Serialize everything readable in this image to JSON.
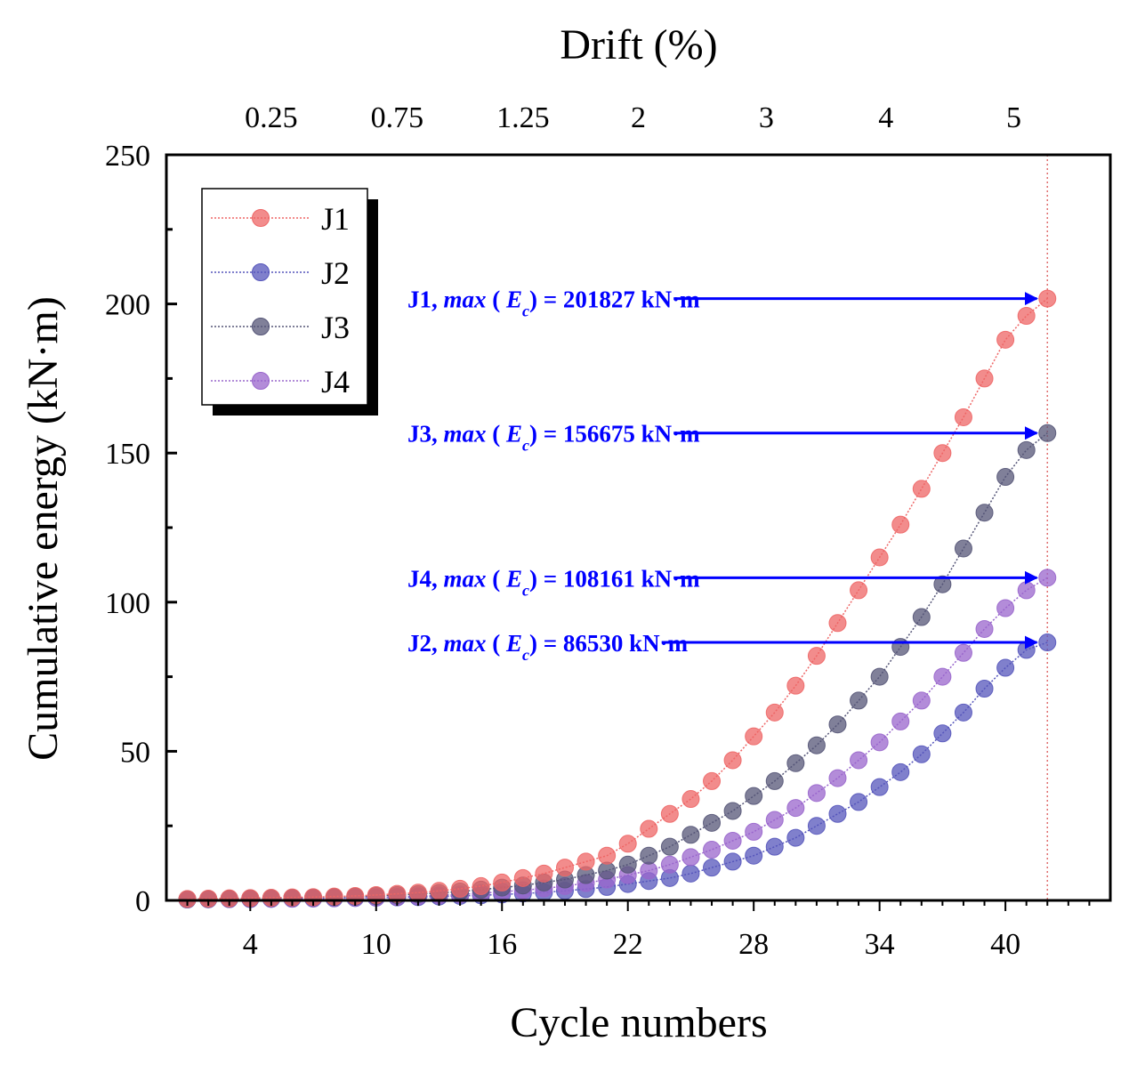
{
  "chart_data": {
    "type": "scatter",
    "xlabel": "Cycle numbers",
    "ylabel": "Cumulative energy (kN·m)",
    "top_xlabel": "Drift (%)",
    "xlim": [
      0,
      45
    ],
    "ylim": [
      0,
      250
    ],
    "x_ticks": [
      4,
      10,
      16,
      22,
      28,
      34,
      40
    ],
    "y_ticks": [
      0,
      50,
      100,
      150,
      200,
      250
    ],
    "top_ticks": [
      {
        "label": "0.25",
        "at_cycle": 5
      },
      {
        "label": "0.75",
        "at_cycle": 11
      },
      {
        "label": "1.25",
        "at_cycle": 17
      },
      {
        "label": "2",
        "at_cycle": 22.5
      },
      {
        "label": "3",
        "at_cycle": 28.6
      },
      {
        "label": "4",
        "at_cycle": 34.3
      },
      {
        "label": "5",
        "at_cycle": 40.4
      }
    ],
    "reference_line_x": 42,
    "legend_position": "top-left",
    "series": [
      {
        "name": "J1",
        "color": "#ee6666",
        "x": [
          1,
          2,
          3,
          4,
          5,
          6,
          7,
          8,
          9,
          10,
          11,
          12,
          13,
          14,
          15,
          16,
          17,
          18,
          19,
          20,
          21,
          22,
          23,
          24,
          25,
          26,
          27,
          28,
          29,
          30,
          31,
          32,
          33,
          34,
          35,
          36,
          37,
          38,
          39,
          40,
          41,
          42
        ],
        "values": [
          0.5,
          0.6,
          0.7,
          0.8,
          0.9,
          1.0,
          1.1,
          1.3,
          1.5,
          1.8,
          2.2,
          2.6,
          3.2,
          3.9,
          4.8,
          6,
          7.5,
          9,
          11,
          13,
          15,
          19,
          24,
          29,
          34,
          40,
          47,
          55,
          63,
          72,
          82,
          93,
          104,
          115,
          126,
          138,
          150,
          162,
          175,
          188,
          196,
          201.8
        ]
      },
      {
        "name": "J2",
        "color": "#5555bb",
        "x": [
          1,
          2,
          3,
          4,
          5,
          6,
          7,
          8,
          9,
          10,
          11,
          12,
          13,
          14,
          15,
          16,
          17,
          18,
          19,
          20,
          21,
          22,
          23,
          24,
          25,
          26,
          27,
          28,
          29,
          30,
          31,
          32,
          33,
          34,
          35,
          36,
          37,
          38,
          39,
          40,
          41,
          42
        ],
        "values": [
          0.3,
          0.35,
          0.4,
          0.45,
          0.5,
          0.55,
          0.6,
          0.7,
          0.8,
          0.9,
          1.0,
          1.1,
          1.3,
          1.5,
          1.7,
          2.0,
          2.3,
          2.7,
          3.2,
          3.8,
          4.5,
          5.5,
          6.5,
          7.5,
          9,
          11,
          13,
          15,
          18,
          21,
          25,
          29,
          33,
          38,
          43,
          49,
          56,
          63,
          71,
          78,
          84,
          86.5
        ]
      },
      {
        "name": "J3",
        "color": "#555577",
        "x": [
          1,
          2,
          3,
          4,
          5,
          6,
          7,
          8,
          9,
          10,
          11,
          12,
          13,
          14,
          15,
          16,
          17,
          18,
          19,
          20,
          21,
          22,
          23,
          24,
          25,
          26,
          27,
          28,
          29,
          30,
          31,
          32,
          33,
          34,
          35,
          36,
          37,
          38,
          39,
          40,
          41,
          42
        ],
        "values": [
          0.4,
          0.5,
          0.6,
          0.7,
          0.8,
          0.9,
          1.0,
          1.1,
          1.3,
          1.5,
          1.8,
          2.1,
          2.5,
          3,
          3.6,
          4.3,
          5,
          6,
          7,
          8.5,
          10,
          12,
          15,
          18,
          22,
          26,
          30,
          35,
          40,
          46,
          52,
          59,
          67,
          75,
          85,
          95,
          106,
          118,
          130,
          142,
          151,
          156.7
        ]
      },
      {
        "name": "J4",
        "color": "#9966cc",
        "x": [
          1,
          2,
          3,
          4,
          5,
          6,
          7,
          8,
          9,
          10,
          11,
          12,
          13,
          14,
          15,
          16,
          17,
          18,
          19,
          20,
          21,
          22,
          23,
          24,
          25,
          26,
          27,
          28,
          29,
          30,
          31,
          32,
          33,
          34,
          35,
          36,
          37,
          38,
          39,
          40,
          41,
          42
        ],
        "values": [
          0.35,
          0.4,
          0.45,
          0.5,
          0.55,
          0.6,
          0.7,
          0.8,
          0.9,
          1.0,
          1.2,
          1.4,
          1.7,
          2,
          2.4,
          2.9,
          3.4,
          4,
          4.8,
          5.8,
          7,
          8.5,
          10,
          12,
          14.5,
          17,
          20,
          23,
          27,
          31,
          36,
          41,
          47,
          53,
          60,
          67,
          75,
          83,
          91,
          98,
          104,
          108.2
        ]
      }
    ],
    "annotations": [
      {
        "series": "J1",
        "prefix": "J1, ",
        "func": "max",
        "open": " ( ",
        "sym": "E",
        "sub": "c",
        "close": ")",
        "suffix": " = 201827 kN·m",
        "arrow_to_x": 41.5,
        "y": 201.8
      },
      {
        "series": "J3",
        "prefix": "J3, ",
        "func": "max",
        "open": " ( ",
        "sym": "E",
        "sub": "c",
        "close": ")",
        "suffix": " = 156675 kN·m",
        "arrow_to_x": 41.5,
        "y": 156.7
      },
      {
        "series": "J4",
        "prefix": "J4, ",
        "func": "max",
        "open": " ( ",
        "sym": "E",
        "sub": "c",
        "close": ")",
        "suffix": " = 108161 kN·m",
        "arrow_to_x": 41.5,
        "y": 108.2
      },
      {
        "series": "J2",
        "prefix": "J2, ",
        "func": "max",
        "open": " ( ",
        "sym": "E",
        "sub": "c",
        "close": ")",
        "suffix": " = 86530 kN·m",
        "arrow_to_x": 41.5,
        "y": 86.5
      }
    ]
  }
}
